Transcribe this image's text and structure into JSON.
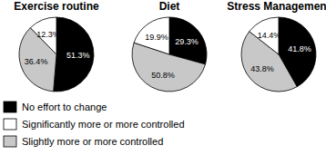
{
  "chart_data": {
    "type": "pie",
    "categories": [
      "No effort to change",
      "Significantly more or more controlled",
      "Slightly more or more controlled"
    ],
    "colors": [
      "#000000",
      "#ffffff",
      "#c8c8c8"
    ],
    "series": [
      {
        "name": "Exercise routine",
        "values": [
          51.3,
          12.3,
          36.4
        ],
        "value_labels": [
          "51.3%",
          "12.3%",
          "36.4%"
        ]
      },
      {
        "name": "Diet",
        "values": [
          29.3,
          19.9,
          50.8
        ],
        "value_labels": [
          "29.3%",
          "19.9%",
          "50.8%"
        ]
      },
      {
        "name": "Stress Management",
        "values": [
          41.8,
          14.4,
          43.8
        ],
        "value_labels": [
          "41.8%",
          "14.4%",
          "43.8%"
        ]
      }
    ],
    "data_labels": true,
    "legend": "bottom left"
  }
}
